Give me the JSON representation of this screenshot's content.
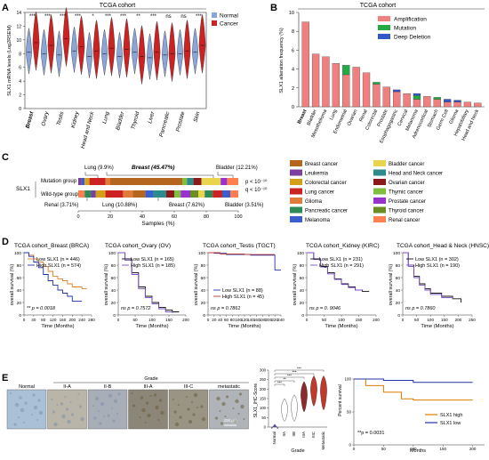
{
  "panels": {
    "A": "A",
    "B": "B",
    "C": "C",
    "D": "D",
    "E": "E"
  },
  "panelA": {
    "title": "TCGA cohort",
    "ylabel": "SLX1 mRNA levels (Log2RSEM)",
    "yticks": [
      "0",
      "2",
      "4",
      "6",
      "8",
      "10",
      "12",
      "14"
    ],
    "legend": [
      {
        "label": "Normal",
        "color": "#8aa6d8"
      },
      {
        "label": "Cancer",
        "color": "#cc2222"
      }
    ],
    "tissues": [
      "Breast",
      "Ovary",
      "Testis",
      "Kidney",
      "Head and Neck",
      "Lung",
      "Bladder",
      "Thyroid",
      "Liver",
      "Pancreatic",
      "Prostate",
      "Skin"
    ],
    "signif": [
      "***",
      "***",
      "***",
      "***",
      "*",
      "***",
      "***",
      "**",
      "***",
      "ns",
      "ns",
      "***"
    ]
  },
  "panelB": {
    "title": "TCGA cohort",
    "ylabel": "SLX1 alteration frequency (%)",
    "legend": [
      {
        "label": "Amplification",
        "color": "#f08080"
      },
      {
        "label": "Mutation",
        "color": "#22aa44"
      },
      {
        "label": "Deep Deletion",
        "color": "#3355cc"
      }
    ]
  },
  "panelC": {
    "side_label": "SLX1",
    "groups": [
      "Mutation group",
      "Wild-type group"
    ],
    "top_annotations": [
      "Lung (9.9%)",
      "Breast (45.47%)",
      "Bladder (12.21%)"
    ],
    "bottom_annotations": [
      "Renal (3.71%)",
      "Lung (10.88%)",
      "Breast (7.62%)",
      "Bladder (3.51%)"
    ],
    "pvals": [
      "p < 10⁻¹⁰",
      "q < 10⁻¹⁰"
    ],
    "xlabel": "Samples (%)",
    "xticks": [
      "0",
      "20",
      "40",
      "60",
      "80",
      "100"
    ],
    "cancer_legend": [
      {
        "label": "Breast cancer",
        "color": "#b5651d"
      },
      {
        "label": "Leukemia",
        "color": "#7b3fa0"
      },
      {
        "label": "Colorectal cancer",
        "color": "#d4a017"
      },
      {
        "label": "Lung cancer",
        "color": "#cc2222"
      },
      {
        "label": "Glioma",
        "color": "#e07b39"
      },
      {
        "label": "Pancreatic cancer",
        "color": "#2e8b57"
      },
      {
        "label": "Melanoma",
        "color": "#3a5fcd"
      },
      {
        "label": "Bladder cancer",
        "color": "#e8d44d"
      },
      {
        "label": "Head and Neck cancer",
        "color": "#2e8b8b"
      },
      {
        "label": "Ovarian cancer",
        "color": "#8b1a1a"
      },
      {
        "label": "Thymic cancer",
        "color": "#7fbf3f"
      },
      {
        "label": "Prostate cancer",
        "color": "#9932cc"
      },
      {
        "label": "Thyroid cancer",
        "color": "#6b8e23"
      },
      {
        "label": "Renal cancer",
        "color": "#ff7f50"
      }
    ]
  },
  "panelD": {
    "ylabel": "overall survival (%)",
    "xlabel": "Time (Months)",
    "plots": [
      {
        "title": "TCGA cohort_Breast (BRCA)",
        "legend": [
          "Low  SLX1 (n = 446)",
          "High SLX1 (n = 574)"
        ],
        "p": "** p = 0.0018",
        "xticks": [
          "0",
          "40",
          "80",
          "120",
          "160",
          "200",
          "240",
          "280"
        ]
      },
      {
        "title": "TCGA cohort_Ovary (OV)",
        "legend": [
          "Low  SLX1 (n = 165)",
          "High SLX1 (n = 185)"
        ],
        "p": "ns p = 0.7572",
        "xticks": [
          "0",
          "50",
          "100",
          "150",
          "200"
        ]
      },
      {
        "title": "TCGA cohort_Testis (TGCT)",
        "legend": [
          "Low  SLX1 (n = 88)",
          "High SLX1 (n = 45)"
        ],
        "p": "ns p = 0.7861",
        "xticks": [
          "0",
          "20",
          "40",
          "60",
          "80",
          "100",
          "120",
          "140",
          "160",
          "180",
          "200",
          "220",
          "240"
        ]
      },
      {
        "title": "TCGA cohort_Kidney (KIRC)",
        "legend": [
          "Low  SLX1 (n = 231)",
          "High SLX1 (n = 291)"
        ],
        "p": "ns p = 0. 9046",
        "xticks": [
          "0",
          "50",
          "100",
          "150",
          "200"
        ]
      },
      {
        "title": "TCGA cohort_Head & Neck (HNSC)",
        "legend": [
          "Low  SLX1 (n = 302)",
          "High SLX1 (n = 190)"
        ],
        "p": "ns p = 0.7860",
        "xticks": [
          "0",
          "50",
          "100",
          "150",
          "200",
          "250"
        ]
      }
    ],
    "yticks": [
      "0",
      "20",
      "40",
      "60",
      "80",
      "100"
    ]
  },
  "panelE": {
    "grade_label": "Grade",
    "tiles": [
      "Normal",
      "II-A",
      "II-B",
      "III-A",
      "III-C",
      "metastatic"
    ],
    "scalebar": "200 μm",
    "violin_ylabel": "SLX1_IHC-Score",
    "violin_yticks": [
      "0",
      "50",
      "100",
      "150",
      "200",
      "250",
      "300"
    ],
    "violin_cats": [
      "Normal",
      "IIA",
      "IIB",
      "IIIA",
      "IIIC",
      "Metastatic"
    ],
    "violin_signif": [
      "***",
      "***",
      "***",
      "**",
      "*",
      "***"
    ],
    "violin_xlabel": "Grade",
    "km_ylabel": "Percent survival",
    "km_xlabel": "Months",
    "km_yticks": [
      "0",
      "50",
      "100"
    ],
    "km_xticks": [
      "0",
      "50",
      "100",
      "150",
      "200"
    ],
    "km_legend": [
      "SLX1 high",
      "SLX1 low"
    ],
    "km_p": "**p = 0.0031"
  },
  "chart_data": [
    {
      "type": "bar",
      "panel": "B",
      "title": "TCGA cohort",
      "ylabel": "SLX1 alteration frequency (%)",
      "ylim": [
        0,
        10
      ],
      "categories": [
        "Breast",
        "Bladder",
        "Mesothelioma",
        "Lung",
        "Endometrial",
        "Ovarian",
        "Renal",
        "Colorectal",
        "Prostate",
        "Esophagogastric",
        "Cervical",
        "Melanoma",
        "Adrenocortical",
        "Stomach",
        "Germ Cell",
        "Glioma",
        "Hepatobiliary",
        "Head and Neck"
      ],
      "series": [
        {
          "name": "Amplification",
          "values": [
            9.0,
            5.6,
            5.3,
            4.6,
            3.4,
            4.2,
            3.6,
            2.4,
            2.1,
            1.6,
            1.4,
            0.8,
            1.1,
            0.8,
            0.5,
            0.5,
            0.5,
            0.4
          ]
        },
        {
          "name": "Mutation",
          "values": [
            0,
            0,
            0,
            0,
            1.0,
            0,
            0,
            0.2,
            0,
            0,
            0,
            0.4,
            0,
            0.2,
            0,
            0,
            0,
            0
          ]
        },
        {
          "name": "Deep Deletion",
          "values": [
            0,
            0,
            0,
            0,
            0,
            0,
            0,
            0,
            0,
            0.2,
            0,
            0.2,
            0,
            0,
            0.3,
            0.2,
            0,
            0
          ]
        }
      ],
      "yticks": [
        "0",
        "2",
        "4",
        "6",
        "8",
        "10"
      ]
    },
    {
      "type": "line",
      "panel": "D-Breast",
      "ylim": [
        0,
        100
      ],
      "series": [
        {
          "name": "Low  SLX1 (n = 446)",
          "x": [
            0,
            20,
            40,
            60,
            80,
            100,
            120,
            140,
            160,
            180,
            200,
            220,
            240,
            260
          ],
          "y": [
            100,
            96,
            90,
            85,
            78,
            70,
            62,
            58,
            55,
            50,
            45,
            45,
            42,
            42
          ]
        },
        {
          "name": "High SLX1 (n = 574)",
          "x": [
            0,
            20,
            40,
            60,
            80,
            100,
            120,
            140,
            160,
            180,
            200,
            220,
            240
          ],
          "y": [
            100,
            94,
            85,
            76,
            65,
            55,
            48,
            40,
            35,
            30,
            22,
            22,
            22
          ]
        }
      ]
    },
    {
      "type": "line",
      "panel": "D-Ovary",
      "ylim": [
        0,
        100
      ],
      "series": [
        {
          "name": "Low  SLX1 (n = 165)",
          "x": [
            0,
            20,
            40,
            60,
            80,
            100,
            120,
            140,
            160,
            180
          ],
          "y": [
            100,
            90,
            68,
            45,
            30,
            20,
            12,
            8,
            5,
            5
          ]
        },
        {
          "name": "High SLX1 (n = 185)",
          "x": [
            0,
            20,
            40,
            60,
            80,
            100,
            120,
            140,
            160
          ],
          "y": [
            100,
            88,
            65,
            42,
            28,
            18,
            10,
            5,
            3
          ]
        }
      ]
    },
    {
      "type": "line",
      "panel": "D-Testis",
      "ylim": [
        0,
        100
      ],
      "series": [
        {
          "name": "Low  SLX1 (n = 88)",
          "x": [
            0,
            20,
            60,
            100,
            140,
            180,
            200,
            215,
            220,
            240
          ],
          "y": [
            100,
            99,
            97,
            97,
            96,
            96,
            96,
            96,
            72,
            72
          ]
        },
        {
          "name": "High SLX1 (n = 45)",
          "x": [
            0,
            40,
            80,
            120,
            160,
            200,
            220
          ],
          "y": [
            100,
            98,
            98,
            97,
            97,
            97,
            97
          ]
        }
      ]
    },
    {
      "type": "line",
      "panel": "D-Kidney",
      "ylim": [
        0,
        100
      ],
      "series": [
        {
          "name": "Low  SLX1 (n = 231)",
          "x": [
            0,
            20,
            40,
            60,
            80,
            100,
            120,
            140,
            160,
            180
          ],
          "y": [
            100,
            90,
            78,
            68,
            58,
            50,
            45,
            40,
            38,
            38
          ]
        },
        {
          "name": "High SLX1 (n = 291)",
          "x": [
            0,
            20,
            40,
            60,
            80,
            100,
            120,
            140,
            160
          ],
          "y": [
            100,
            89,
            77,
            66,
            57,
            49,
            44,
            40,
            40
          ]
        }
      ]
    },
    {
      "type": "line",
      "panel": "D-HeadNeck",
      "ylim": [
        0,
        100
      ],
      "series": [
        {
          "name": "Low  SLX1 (n = 302)",
          "x": [
            0,
            20,
            40,
            60,
            80,
            100,
            140,
            180,
            210
          ],
          "y": [
            100,
            80,
            62,
            50,
            42,
            35,
            30,
            26,
            20
          ]
        },
        {
          "name": "High SLX1 (n = 190)",
          "x": [
            0,
            20,
            40,
            60,
            80,
            100,
            140,
            180
          ],
          "y": [
            100,
            78,
            60,
            48,
            40,
            33,
            28,
            25
          ]
        }
      ]
    },
    {
      "type": "line",
      "panel": "E-KM",
      "ylim": [
        0,
        100
      ],
      "series": [
        {
          "name": "SLX1 high",
          "x": [
            0,
            20,
            50,
            80,
            100,
            150,
            200
          ],
          "y": [
            100,
            90,
            80,
            70,
            68,
            68,
            68
          ]
        },
        {
          "name": "SLX1 low",
          "x": [
            0,
            50,
            100,
            150,
            200
          ],
          "y": [
            100,
            98,
            95,
            95,
            95
          ]
        }
      ]
    }
  ]
}
